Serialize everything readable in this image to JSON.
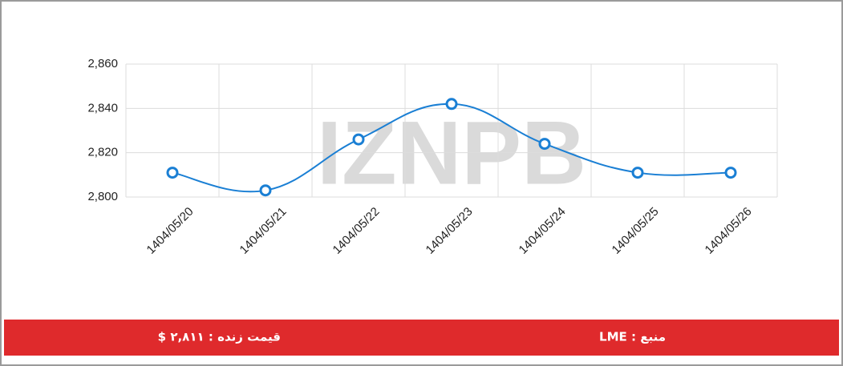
{
  "chart_data": {
    "type": "line",
    "watermark": "IZNPB",
    "categories": [
      "1404/05/20",
      "1404/05/21",
      "1404/05/22",
      "1404/05/23",
      "1404/05/24",
      "1404/05/25",
      "1404/05/26"
    ],
    "series": [
      {
        "name": "LME",
        "color": "#1a7fd4",
        "values": [
          2811,
          2803,
          2826,
          2842,
          2824,
          2811,
          2811
        ]
      }
    ],
    "ylim": [
      2800,
      2860
    ],
    "yticks": [
      {
        "value": 2800,
        "label": "2,800"
      },
      {
        "value": 2820,
        "label": "2,820"
      },
      {
        "value": 2840,
        "label": "2,840"
      },
      {
        "value": 2860,
        "label": "2,860"
      }
    ],
    "grid": true
  },
  "footer": {
    "live_price": "قیمت زنده : ۲,۸۱۱ $",
    "source": "منبع : LME"
  }
}
